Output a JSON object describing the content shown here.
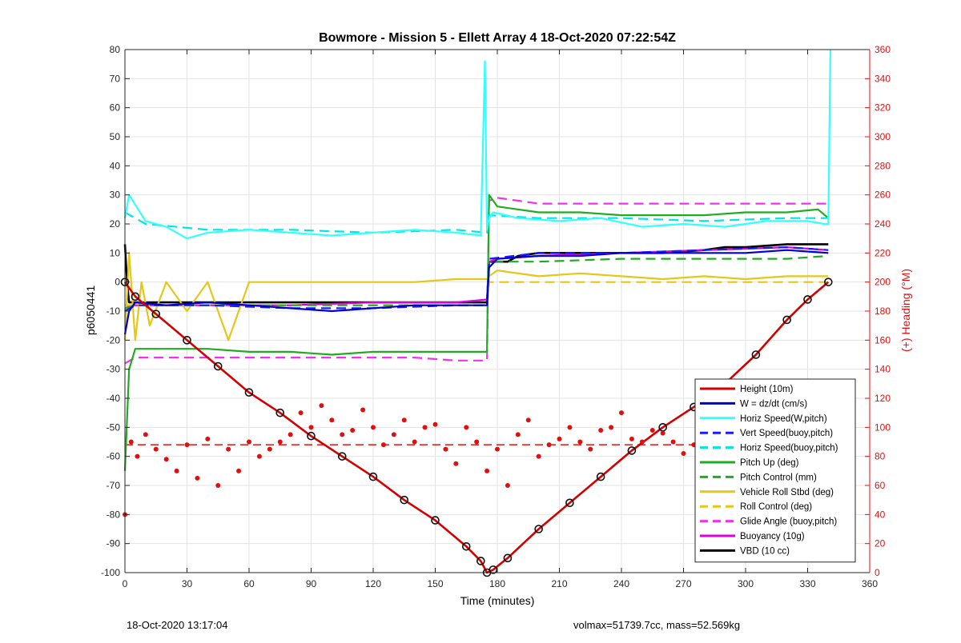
{
  "chart_data": {
    "type": "line",
    "title": "Bowmore - Mission 5 - Ellett Array 4 18-Oct-2020 07:22:54Z",
    "xlabel": "Time (minutes)",
    "ylabel_left": "p6050441",
    "ylabel_right": "(+) Heading (°M)",
    "xlim": [
      0,
      360
    ],
    "ylim_left": [
      -100,
      80
    ],
    "ylim_right": [
      0,
      360
    ],
    "x_ticks": [
      0,
      30,
      60,
      90,
      120,
      150,
      180,
      210,
      240,
      270,
      300,
      330,
      360
    ],
    "y_ticks_left": [
      -100,
      -90,
      -80,
      -70,
      -60,
      -50,
      -40,
      -30,
      -20,
      -10,
      0,
      10,
      20,
      30,
      40,
      50,
      60,
      70,
      80
    ],
    "y_ticks_right": [
      0,
      20,
      40,
      60,
      80,
      100,
      120,
      140,
      160,
      180,
      200,
      220,
      240,
      260,
      280,
      300,
      320,
      340,
      360
    ],
    "grid": true,
    "legend_position": "bottom-right",
    "colors": {
      "height": "#d40000",
      "w": "#0000cc",
      "horiz_speed": "#33ffff",
      "vert_speed": "#1a1aff",
      "horiz_speed_buoy": "#00e5e5",
      "pitch_up": "#22aa22",
      "pitch_control": "#22aa22",
      "roll": "#e6c619",
      "roll_control": "#e6c619",
      "glide_angle": "#ee33ee",
      "buoyancy": "#dd00dd",
      "vbd": "#000000",
      "heading": "#e01010",
      "right_axis": "#e01010"
    },
    "series": [
      {
        "name": "Height (10m)",
        "style": "solid",
        "color_key": "height",
        "x": [
          0,
          5,
          15,
          30,
          45,
          60,
          75,
          90,
          105,
          120,
          135,
          150,
          165,
          172,
          175,
          178,
          185,
          200,
          215,
          230,
          245,
          260,
          275,
          290,
          305,
          320,
          330,
          340
        ],
        "y": [
          0,
          -5,
          -11,
          -20,
          -29,
          -38,
          -45,
          -53,
          -60,
          -67,
          -75,
          -82,
          -91,
          -96,
          -100,
          -99,
          -95,
          -85,
          -76,
          -67,
          -58,
          -50,
          -43,
          -35,
          -25,
          -13,
          -6,
          0
        ]
      },
      {
        "name": "W = dz/dt (cm/s)",
        "style": "solid",
        "color_key": "w",
        "x": [
          0,
          2,
          5,
          20,
          40,
          60,
          80,
          100,
          120,
          140,
          160,
          175,
          176,
          180,
          200,
          220,
          240,
          260,
          280,
          300,
          320,
          340
        ],
        "y": [
          -18,
          -10,
          -7,
          -8,
          -7,
          -8,
          -9,
          -10,
          -9,
          -8,
          -8,
          -8,
          5,
          8,
          9,
          9,
          10,
          10,
          10,
          10,
          11,
          10
        ]
      },
      {
        "name": "Horiz Speed(W,pitch)",
        "style": "solid",
        "color_key": "horiz_speed",
        "x": [
          0,
          2,
          10,
          20,
          30,
          40,
          60,
          80,
          100,
          120,
          140,
          160,
          172,
          174,
          175,
          176,
          178,
          190,
          210,
          230,
          250,
          270,
          290,
          310,
          330,
          338,
          340,
          341
        ],
        "y": [
          22,
          30,
          21,
          19,
          15,
          17,
          18,
          17,
          16,
          17,
          18,
          17,
          16,
          76,
          18,
          22,
          24,
          22,
          21,
          22,
          19,
          20,
          19,
          21,
          21,
          20,
          20,
          80
        ]
      },
      {
        "name": "Vert Speed(buoy,pitch)",
        "style": "dash",
        "color_key": "vert_speed",
        "x": [
          0,
          5,
          40,
          80,
          120,
          160,
          175,
          176,
          200,
          240,
          280,
          320,
          340
        ],
        "y": [
          -10,
          -8,
          -8,
          -9,
          -9,
          -8,
          -8,
          8,
          10,
          10,
          11,
          12,
          11
        ]
      },
      {
        "name": "Horiz Speed(buoy,pitch)",
        "style": "dash",
        "color_key": "horiz_speed_buoy",
        "x": [
          0,
          10,
          40,
          80,
          120,
          160,
          175,
          176,
          200,
          240,
          280,
          320,
          340
        ],
        "y": [
          24,
          20,
          18,
          18,
          17,
          18,
          17,
          23,
          22,
          22,
          21,
          22,
          22
        ]
      },
      {
        "name": "Pitch Up (deg)",
        "style": "solid",
        "color_key": "pitch_up",
        "x": [
          0,
          2,
          5,
          20,
          40,
          60,
          80,
          100,
          120,
          140,
          160,
          175,
          176,
          180,
          200,
          220,
          240,
          260,
          280,
          300,
          320,
          335,
          340
        ],
        "y": [
          -65,
          -30,
          -23,
          -23,
          -23,
          -24,
          -24,
          -25,
          -24,
          -24,
          -24,
          -24,
          30,
          26,
          24,
          24,
          23,
          23,
          23,
          24,
          24,
          25,
          22
        ]
      },
      {
        "name": "Pitch Control (mm)",
        "style": "dash",
        "color_key": "pitch_control",
        "x": [
          0,
          5,
          40,
          80,
          120,
          160,
          175,
          176,
          200,
          240,
          280,
          320,
          340
        ],
        "y": [
          -9,
          -8,
          -8,
          -8,
          -8,
          -8,
          -8,
          7,
          7,
          8,
          8,
          8,
          9
        ]
      },
      {
        "name": "Vehicle Roll Stbd (deg)",
        "style": "solid",
        "color_key": "roll",
        "x": [
          0,
          2,
          5,
          8,
          12,
          20,
          30,
          40,
          50,
          60,
          80,
          100,
          120,
          140,
          160,
          175,
          176,
          180,
          200,
          220,
          240,
          260,
          280,
          300,
          320,
          340
        ],
        "y": [
          -20,
          10,
          -20,
          0,
          -15,
          0,
          -10,
          0,
          -20,
          0,
          0,
          0,
          0,
          0,
          1,
          1,
          2,
          4,
          2,
          3,
          2,
          1,
          2,
          1,
          2,
          2
        ]
      },
      {
        "name": "Roll Control (deg)",
        "style": "dash",
        "color_key": "roll_control",
        "x": [
          0,
          5,
          40,
          80,
          120,
          160,
          175,
          176,
          200,
          240,
          280,
          320,
          340
        ],
        "y": [
          -8,
          -8,
          -8,
          -8,
          -8,
          -8,
          -8,
          0,
          0,
          0,
          0,
          0,
          0
        ]
      },
      {
        "name": "Glide Angle (buoy,pitch)",
        "style": "dash",
        "color_key": "glide_angle",
        "x": [
          0,
          5,
          20,
          40,
          60,
          80,
          100,
          120,
          140,
          160,
          175,
          176,
          180,
          200,
          240,
          280,
          320,
          340
        ],
        "y": [
          -28,
          -26,
          -26,
          -26,
          -26,
          -26,
          -26,
          -26,
          -26,
          -27,
          -27,
          28,
          29,
          27,
          27,
          27,
          27,
          27
        ]
      },
      {
        "name": "Buoyancy (10g)",
        "style": "solid",
        "color_key": "buoyancy",
        "x": [
          0,
          2,
          5,
          40,
          80,
          120,
          160,
          175,
          176,
          180,
          200,
          240,
          280,
          320,
          340
        ],
        "y": [
          -10,
          -8,
          -8,
          -8,
          -8,
          -7,
          -7,
          -6,
          7,
          8,
          9,
          10,
          11,
          12,
          11
        ]
      },
      {
        "name": "VBD (10 cc)",
        "style": "solid",
        "color_key": "vbd",
        "x": [
          0,
          1,
          2,
          5,
          40,
          80,
          120,
          160,
          175,
          176,
          177,
          185,
          190,
          200,
          230,
          260,
          280,
          290,
          300,
          320,
          340
        ],
        "y": [
          13,
          0,
          -7,
          -7,
          -7,
          -7,
          -7,
          -7,
          -7,
          7,
          7,
          7,
          9,
          10,
          10,
          10,
          11,
          12,
          12,
          13,
          13
        ]
      }
    ],
    "heading_series": {
      "name": "Heading (°M)",
      "axis": "right",
      "style": "dots",
      "color_key": "heading",
      "x": [
        0,
        3,
        6,
        10,
        15,
        20,
        25,
        30,
        35,
        40,
        45,
        50,
        55,
        60,
        65,
        70,
        75,
        80,
        85,
        90,
        95,
        100,
        105,
        110,
        115,
        120,
        125,
        130,
        135,
        140,
        145,
        150,
        155,
        160,
        165,
        170,
        175,
        180,
        185,
        190,
        195,
        200,
        205,
        210,
        215,
        220,
        225,
        230,
        235,
        240,
        245,
        250,
        255,
        260,
        265,
        270,
        275,
        280,
        285,
        290,
        295,
        300,
        305,
        310,
        315,
        320,
        325,
        330,
        335,
        340
      ],
      "y": [
        40,
        90,
        80,
        95,
        85,
        78,
        70,
        88,
        65,
        92,
        60,
        85,
        70,
        90,
        80,
        85,
        90,
        95,
        110,
        100,
        115,
        105,
        95,
        98,
        112,
        100,
        88,
        95,
        105,
        90,
        100,
        102,
        85,
        75,
        100,
        90,
        70,
        85,
        60,
        95,
        105,
        80,
        88,
        92,
        100,
        90,
        85,
        98,
        100,
        110,
        92,
        90,
        98,
        96,
        90,
        82,
        88,
        95,
        92,
        85,
        75,
        80,
        95,
        100,
        90,
        88,
        92,
        98,
        95,
        90
      ]
    },
    "heading_reference": {
      "value": 88,
      "style": "dash"
    }
  },
  "footer": {
    "left": "18-Oct-2020 13:17:04",
    "right": "volmax=51739.7cc, mass=52.569kg"
  }
}
